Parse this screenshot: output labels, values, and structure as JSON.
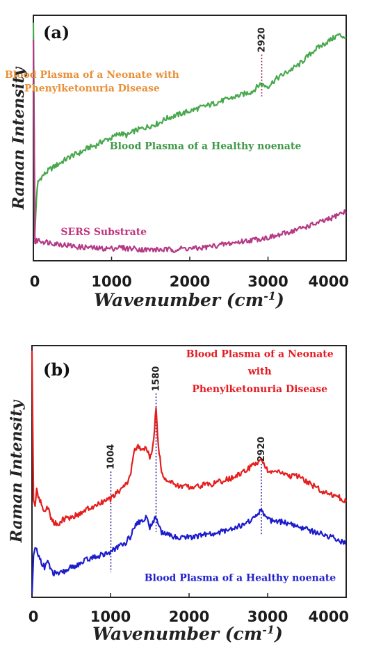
{
  "chart_data": [
    {
      "panel": "(a)",
      "type": "line",
      "xlabel_main": "Wavenumber (cm",
      "xlabel_sup": "-1",
      "xlabel_end": ")",
      "ylabel": "Raman Intensity",
      "xlim": [
        0,
        4000
      ],
      "ylim": [
        0,
        1
      ],
      "x_ticks": [
        0,
        1000,
        2000,
        3000,
        4000
      ],
      "grid": false,
      "peaks": [
        {
          "x": 2920,
          "label": "2920",
          "y_top": 0.84,
          "y_bottom": 0.67
        }
      ],
      "annotations": [
        {
          "text": "Blood Plasma of a Neonate with",
          "color": "#e8913a",
          "x": 750,
          "y": 0.745
        },
        {
          "text": "Phenylketonuria Disease",
          "color": "#e8913a",
          "x": 750,
          "y": 0.69
        },
        {
          "text": "Blood Plasma of a Healthy noenate",
          "color": "#3f9a48",
          "x": 2200,
          "y": 0.455
        },
        {
          "text": "SERS Substrate",
          "color": "#c2357f",
          "x": 900,
          "y": 0.105
        }
      ],
      "series": [
        {
          "name": "Blood Plasma of a Healthy noenate",
          "color": "#47a84c",
          "x": [
            0,
            20,
            40,
            60,
            100,
            200,
            300,
            400,
            500,
            600,
            700,
            800,
            900,
            1000,
            1100,
            1200,
            1300,
            1400,
            1500,
            1600,
            1700,
            1800,
            1900,
            2000,
            2100,
            2200,
            2300,
            2400,
            2500,
            2600,
            2700,
            2800,
            2900,
            3000,
            3100,
            3200,
            3300,
            3400,
            3500,
            3600,
            3700,
            3800,
            3900,
            4000
          ],
          "y": [
            0.97,
            0.12,
            0.26,
            0.32,
            0.34,
            0.37,
            0.39,
            0.41,
            0.43,
            0.44,
            0.46,
            0.47,
            0.49,
            0.5,
            0.52,
            0.51,
            0.53,
            0.54,
            0.55,
            0.56,
            0.58,
            0.59,
            0.6,
            0.61,
            0.62,
            0.63,
            0.64,
            0.65,
            0.66,
            0.67,
            0.68,
            0.69,
            0.72,
            0.71,
            0.74,
            0.76,
            0.78,
            0.8,
            0.83,
            0.86,
            0.88,
            0.9,
            0.92,
            0.91
          ]
        },
        {
          "name": "SERS Substrate",
          "color": "#b53a86",
          "x": [
            0,
            20,
            40,
            60,
            100,
            200,
            300,
            400,
            500,
            600,
            700,
            800,
            900,
            1000,
            1100,
            1200,
            1300,
            1400,
            1500,
            1600,
            1700,
            1800,
            1900,
            2000,
            2100,
            2200,
            2300,
            2400,
            2500,
            2600,
            2700,
            2800,
            2900,
            3000,
            3100,
            3200,
            3300,
            3400,
            3500,
            3600,
            3700,
            3800,
            3900,
            4000
          ],
          "y": [
            0.9,
            0.07,
            0.08,
            0.085,
            0.08,
            0.075,
            0.07,
            0.065,
            0.06,
            0.055,
            0.055,
            0.05,
            0.05,
            0.05,
            0.055,
            0.05,
            0.05,
            0.045,
            0.045,
            0.045,
            0.045,
            0.045,
            0.05,
            0.05,
            0.05,
            0.055,
            0.06,
            0.065,
            0.07,
            0.075,
            0.08,
            0.085,
            0.09,
            0.095,
            0.1,
            0.11,
            0.12,
            0.13,
            0.14,
            0.15,
            0.16,
            0.17,
            0.19,
            0.2
          ]
        }
      ]
    },
    {
      "panel": "(b)",
      "type": "line",
      "xlabel_main": "Wavenumber (cm",
      "xlabel_sup": "-1",
      "xlabel_end": ")",
      "ylabel": "Raman Intensity",
      "xlim": [
        0,
        4000
      ],
      "ylim": [
        0,
        1
      ],
      "x_ticks": [
        0,
        1000,
        2000,
        3000,
        4000
      ],
      "grid": false,
      "peaks": [
        {
          "x": 1004,
          "label": "1004",
          "y_top": 0.5,
          "y_bottom": 0.1
        },
        {
          "x": 1580,
          "label": "1580",
          "y_top": 0.81,
          "y_bottom": 0.26
        },
        {
          "x": 2920,
          "label": "2920",
          "y_top": 0.53,
          "y_bottom": 0.25
        }
      ],
      "annotations": [
        {
          "text": "Blood Plasma of a Neonate",
          "color": "#e31c23",
          "x": 2900,
          "y": 0.955
        },
        {
          "text": "with",
          "color": "#e31c23",
          "x": 2900,
          "y": 0.885
        },
        {
          "text": "Phenylketonuria Disease",
          "color": "#e31c23",
          "x": 2900,
          "y": 0.815
        },
        {
          "text": "Blood Plasma of a Healthy noenate",
          "color": "#2222cc",
          "x": 2650,
          "y": 0.065
        }
      ],
      "series": [
        {
          "name": "Blood Plasma of a Neonate with Phenylketonuria Disease",
          "color": "#e51d1d",
          "x": [
            0,
            20,
            40,
            60,
            80,
            120,
            160,
            200,
            260,
            320,
            400,
            500,
            600,
            700,
            800,
            900,
            1000,
            1100,
            1200,
            1250,
            1300,
            1350,
            1400,
            1450,
            1500,
            1540,
            1580,
            1610,
            1650,
            1700,
            1800,
            1900,
            2000,
            2100,
            2200,
            2300,
            2400,
            2500,
            2600,
            2700,
            2800,
            2880,
            2920,
            2960,
            3000,
            3100,
            3200,
            3300,
            3400,
            3500,
            3600,
            3700,
            3800,
            3900,
            4000
          ],
          "y": [
            0.98,
            0.38,
            0.37,
            0.43,
            0.4,
            0.37,
            0.34,
            0.36,
            0.3,
            0.29,
            0.31,
            0.32,
            0.33,
            0.35,
            0.36,
            0.38,
            0.39,
            0.42,
            0.45,
            0.48,
            0.58,
            0.6,
            0.58,
            0.6,
            0.55,
            0.6,
            0.75,
            0.6,
            0.5,
            0.47,
            0.45,
            0.44,
            0.44,
            0.44,
            0.45,
            0.45,
            0.46,
            0.47,
            0.48,
            0.5,
            0.52,
            0.54,
            0.55,
            0.53,
            0.5,
            0.5,
            0.49,
            0.48,
            0.48,
            0.46,
            0.44,
            0.42,
            0.41,
            0.4,
            0.38
          ]
        },
        {
          "name": "Blood Plasma of a Healthy noenate",
          "color": "#1c1ccc",
          "x": [
            0,
            20,
            40,
            60,
            80,
            120,
            160,
            200,
            260,
            320,
            400,
            500,
            600,
            700,
            800,
            900,
            1000,
            1100,
            1200,
            1250,
            1300,
            1350,
            1400,
            1450,
            1500,
            1540,
            1580,
            1610,
            1650,
            1700,
            1800,
            1900,
            2000,
            2100,
            2200,
            2300,
            2400,
            2500,
            2600,
            2700,
            2800,
            2880,
            2920,
            2960,
            3000,
            3100,
            3200,
            3300,
            3400,
            3500,
            3600,
            3700,
            3800,
            3900,
            4000
          ],
          "y": [
            0.01,
            0.16,
            0.2,
            0.19,
            0.17,
            0.14,
            0.12,
            0.14,
            0.1,
            0.09,
            0.1,
            0.12,
            0.13,
            0.15,
            0.16,
            0.17,
            0.18,
            0.2,
            0.22,
            0.24,
            0.28,
            0.3,
            0.3,
            0.32,
            0.28,
            0.3,
            0.32,
            0.29,
            0.26,
            0.25,
            0.24,
            0.24,
            0.24,
            0.24,
            0.25,
            0.25,
            0.26,
            0.27,
            0.28,
            0.29,
            0.31,
            0.33,
            0.35,
            0.33,
            0.31,
            0.3,
            0.3,
            0.29,
            0.28,
            0.27,
            0.26,
            0.25,
            0.24,
            0.23,
            0.21
          ]
        }
      ]
    }
  ]
}
